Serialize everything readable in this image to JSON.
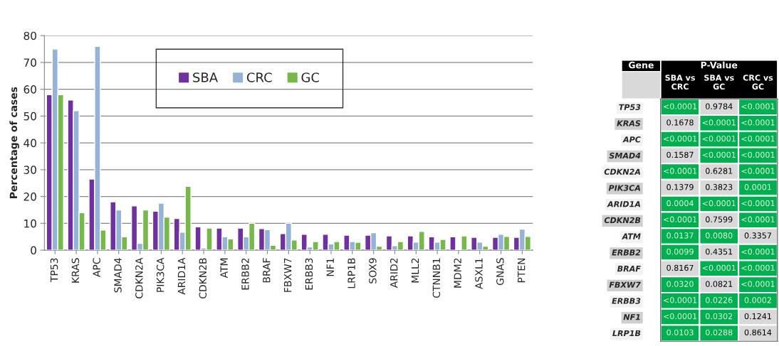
{
  "chart_data": [
    {
      "type": "bar",
      "ylabel": "Percentage of cases",
      "categories": [
        "TP53",
        "KRAS",
        "APC",
        "SMAD4",
        "CDKN2A",
        "PIK3CA",
        "ARID1A",
        "CDKN2B",
        "ATM",
        "ERBB2",
        "BRAF",
        "FBXW7",
        "ERBB3",
        "NF1",
        "LRP1B",
        "SOX9",
        "ARID2",
        "MLL2",
        "CTNNB1",
        "MDM2",
        "ASXL1",
        "GNAS",
        "PTEN"
      ],
      "series": [
        {
          "name": "SBA",
          "color": "#7030a0",
          "values": [
            58,
            56,
            26.5,
            18,
            16.5,
            14.5,
            11.8,
            8.7,
            8.2,
            8.2,
            8,
            6.2,
            5.9,
            5.9,
            5.6,
            5.6,
            5.3,
            5.3,
            5,
            5,
            4.8,
            4.8,
            4.8
          ]
        },
        {
          "name": "CRC",
          "color": "#95b3d7",
          "values": [
            75,
            52,
            76,
            15,
            2.5,
            17.5,
            6.7,
            0.8,
            5,
            5,
            7.6,
            10,
            1.2,
            2.3,
            3.2,
            6.5,
            1.7,
            3,
            3,
            0.3,
            3,
            5.9,
            7.8
          ]
        },
        {
          "name": "GC",
          "color": "#77b84a",
          "values": [
            58,
            14,
            7.5,
            5,
            15,
            12.3,
            23.8,
            8.2,
            4.2,
            10,
            1.8,
            3.8,
            3.2,
            3.2,
            2.9,
            1.5,
            3.2,
            7,
            4,
            5.3,
            1.5,
            5.1,
            5.1
          ]
        }
      ],
      "ylim": [
        0,
        80
      ],
      "yticks": [
        0,
        10,
        20,
        30,
        40,
        50,
        60,
        70,
        80
      ],
      "grid": "y",
      "legend": "top"
    },
    {
      "type": "heatmap",
      "title": "P-Value",
      "ylabel": "Gene",
      "categories": [
        "SBA vs CRC",
        "SBA vs GC",
        "CRC vs GC"
      ],
      "y_categories": [
        "TP53",
        "KRAS",
        "APC",
        "SMAD4",
        "CDKN2A",
        "PIK3CA",
        "ARID1A",
        "CDKN2B",
        "ATM",
        "ERBB2",
        "BRAF",
        "FBXW7",
        "ERBB3",
        "NF1",
        "LRP1B"
      ],
      "cells": [
        [
          null,
          null,
          null
        ],
        [
          null,
          null,
          null
        ],
        [
          null,
          null,
          null
        ],
        [
          null,
          null,
          null
        ],
        [
          null,
          null,
          null
        ],
        [
          null,
          null,
          null
        ],
        [
          null,
          null,
          null
        ],
        [
          null,
          null,
          null
        ],
        [
          null,
          null,
          null
        ],
        [
          null,
          null,
          null
        ],
        [
          null,
          null,
          null
        ],
        [
          null,
          null,
          null
        ],
        [
          null,
          null,
          null
        ],
        [
          null,
          null,
          null
        ],
        [
          null,
          null,
          null
        ]
      ],
      "cell_labels": [
        [
          "<0.0001",
          "0.9784",
          "<0.0001"
        ],
        [
          "0.1678",
          "<0.0001",
          "<0.0001"
        ],
        [
          "<0.0001",
          "<0.0001",
          "<0.0001"
        ],
        [
          "0.1587",
          "<0.0001",
          "<0.0001"
        ],
        [
          "<0.0001",
          "0.6281",
          "<0.0001"
        ],
        [
          "0.1379",
          "0.3823",
          "0.0001"
        ],
        [
          "0.0004",
          "<0.0001",
          "<0.0001"
        ],
        [
          "<0.0001",
          "0.7599",
          "<0.0001"
        ],
        [
          "0.0137",
          "0.0080",
          "0.3357"
        ],
        [
          "0.0099",
          "0.4351",
          "<0.0001"
        ],
        [
          "0.8167",
          "<0.0001",
          "<0.0001"
        ],
        [
          "0.0320",
          "0.0821",
          "<0.0001"
        ],
        [
          "<0.0001",
          "0.0226",
          "0.0002"
        ],
        [
          "<0.0001",
          "0.0302",
          "0.1241"
        ],
        [
          "0.0103",
          "0.0288",
          "0.8614"
        ]
      ],
      "colors": [
        [
          "#00b050",
          "#d9d9d9",
          "#00b050"
        ],
        [
          "#d9d9d9",
          "#00b050",
          "#00b050"
        ],
        [
          "#00b050",
          "#00b050",
          "#00b050"
        ],
        [
          "#d9d9d9",
          "#00b050",
          "#00b050"
        ],
        [
          "#00b050",
          "#d9d9d9",
          "#00b050"
        ],
        [
          "#d9d9d9",
          "#d9d9d9",
          "#00b050"
        ],
        [
          "#00b050",
          "#00b050",
          "#00b050"
        ],
        [
          "#00b050",
          "#d9d9d9",
          "#00b050"
        ],
        [
          "#00b050",
          "#00b050",
          "#d9d9d9"
        ],
        [
          "#00b050",
          "#d9d9d9",
          "#00b050"
        ],
        [
          "#d9d9d9",
          "#00b050",
          "#00b050"
        ],
        [
          "#00b050",
          "#d9d9d9",
          "#00b050"
        ],
        [
          "#00b050",
          "#00b050",
          "#00b050"
        ],
        [
          "#00b050",
          "#00b050",
          "#d9d9d9"
        ],
        [
          "#00b050",
          "#00b050",
          "#d9d9d9"
        ]
      ]
    }
  ]
}
